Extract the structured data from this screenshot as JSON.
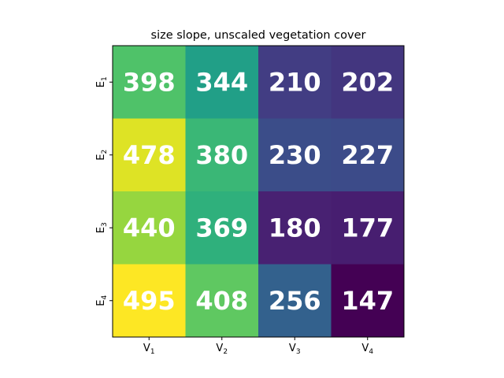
{
  "chart_data": {
    "type": "heatmap",
    "title": "size slope, unscaled vegetation cover",
    "x_categories": [
      {
        "base": "V",
        "sub": "1"
      },
      {
        "base": "V",
        "sub": "2"
      },
      {
        "base": "V",
        "sub": "3"
      },
      {
        "base": "V",
        "sub": "4"
      }
    ],
    "y_categories": [
      {
        "base": "E",
        "sub": "1"
      },
      {
        "base": "E",
        "sub": "2"
      },
      {
        "base": "E",
        "sub": "3"
      },
      {
        "base": "E",
        "sub": "4"
      }
    ],
    "values": [
      [
        398,
        344,
        210,
        202
      ],
      [
        478,
        380,
        230,
        227
      ],
      [
        440,
        369,
        180,
        177
      ],
      [
        495,
        408,
        256,
        147
      ]
    ],
    "colormap": "viridis",
    "value_range": [
      147,
      495
    ],
    "grid": false,
    "legend": "none"
  }
}
